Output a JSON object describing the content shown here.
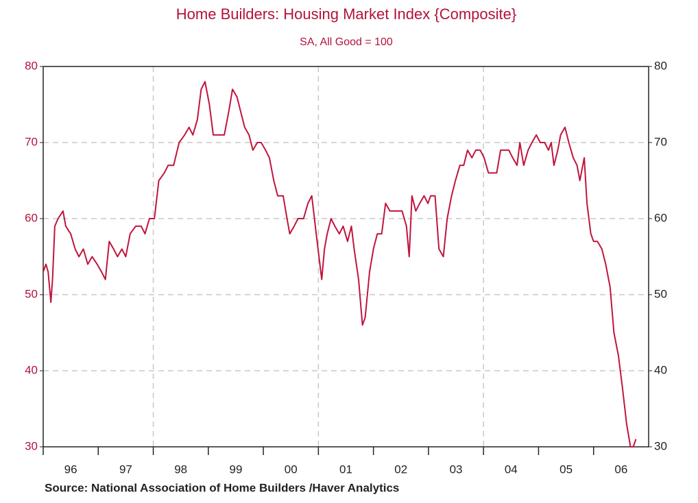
{
  "chart_data": {
    "type": "line",
    "title": "Home Builders: Housing Market Index  {Composite}",
    "subtitle": "SA, All Good = 100",
    "source": "Source:  National Association of Home Builders /Haver Analytics",
    "color": "#c0143c",
    "text_color": "#b3123a",
    "x": [
      1996.0,
      1996.05,
      1996.09,
      1996.14,
      1996.17,
      1996.21,
      1996.27,
      1996.36,
      1996.41,
      1996.5,
      1996.58,
      1996.65,
      1996.73,
      1996.81,
      1996.89,
      1996.98,
      1997.06,
      1997.13,
      1997.2,
      1997.28,
      1997.35,
      1997.43,
      1997.5,
      1997.58,
      1997.68,
      1997.78,
      1997.85,
      1997.93,
      1998.02,
      1998.1,
      1998.2,
      1998.27,
      1998.37,
      1998.47,
      1998.57,
      1998.65,
      1998.72,
      1998.8,
      1998.87,
      1998.94,
      1999.02,
      1999.09,
      1999.19,
      1999.29,
      1999.37,
      1999.44,
      1999.52,
      1999.59,
      1999.66,
      1999.74,
      1999.81,
      1999.89,
      1999.96,
      2000.04,
      2000.11,
      2000.19,
      2000.26,
      2000.36,
      2000.43,
      2000.48,
      2000.56,
      2000.63,
      2000.73,
      2000.81,
      2000.88,
      2000.96,
      2001.01,
      2001.06,
      2001.11,
      2001.16,
      2001.23,
      2001.3,
      2001.38,
      2001.45,
      2001.53,
      2001.6,
      2001.65,
      2001.73,
      2001.8,
      2001.85,
      2001.93,
      2002.0,
      2002.07,
      2002.15,
      2002.22,
      2002.3,
      2002.37,
      2002.45,
      2002.52,
      2002.6,
      2002.65,
      2002.7,
      2002.77,
      2002.84,
      2002.92,
      2002.99,
      2003.04,
      2003.12,
      2003.19,
      2003.27,
      2003.34,
      2003.42,
      2003.49,
      2003.57,
      2003.64,
      2003.71,
      2003.79,
      2003.86,
      2003.94,
      2004.01,
      2004.09,
      2004.16,
      2004.24,
      2004.31,
      2004.39,
      2004.46,
      2004.53,
      2004.61,
      2004.66,
      2004.73,
      2004.81,
      2004.88,
      2004.96,
      2005.03,
      2005.11,
      2005.18,
      2005.23,
      2005.28,
      2005.35,
      2005.4,
      2005.48,
      2005.55,
      2005.63,
      2005.7,
      2005.75,
      2005.83,
      2005.88,
      2005.95,
      2006.0,
      2006.07,
      2006.15,
      2006.22,
      2006.3,
      2006.37,
      2006.45,
      2006.52,
      2006.6,
      2006.67,
      2006.72,
      2006.77
    ],
    "values": [
      53,
      54,
      53,
      49,
      52,
      59,
      60,
      61,
      59,
      58,
      56,
      55,
      56,
      54,
      55,
      54,
      53,
      52,
      57,
      56,
      55,
      56,
      55,
      58,
      59,
      59,
      58,
      60,
      60,
      65,
      66,
      67,
      67,
      70,
      71,
      72,
      71,
      73,
      77,
      78,
      75,
      71,
      71,
      71,
      74,
      77,
      76,
      74,
      72,
      71,
      69,
      70,
      70,
      69,
      68,
      65,
      63,
      63,
      60,
      58,
      59,
      60,
      60,
      62,
      63,
      58,
      55,
      52,
      56,
      58,
      60,
      59,
      58,
      59,
      57,
      59,
      56,
      52,
      46,
      47,
      53,
      56,
      58,
      58,
      62,
      61,
      61,
      61,
      61,
      59,
      55,
      63,
      61,
      62,
      63,
      62,
      63,
      63,
      56,
      55,
      60,
      63,
      65,
      67,
      67,
      69,
      68,
      69,
      69,
      68,
      66,
      66,
      66,
      69,
      69,
      69,
      68,
      67,
      70,
      67,
      69,
      70,
      71,
      70,
      70,
      69,
      70,
      67,
      69,
      71,
      72,
      70,
      68,
      67,
      65,
      68,
      62,
      58,
      57,
      57,
      56,
      54,
      51,
      45,
      42,
      38,
      33,
      30,
      30,
      31
    ],
    "xlim": [
      1996,
      2007
    ],
    "xticks": [
      {
        "value": 1996,
        "label": "96"
      },
      {
        "value": 1997,
        "label": "97"
      },
      {
        "value": 1998,
        "label": "98"
      },
      {
        "value": 1999,
        "label": "99"
      },
      {
        "value": 2000,
        "label": "00"
      },
      {
        "value": 2001,
        "label": "01"
      },
      {
        "value": 2002,
        "label": "02"
      },
      {
        "value": 2003,
        "label": "03"
      },
      {
        "value": 2004,
        "label": "04"
      },
      {
        "value": 2005,
        "label": "05"
      },
      {
        "value": 2006,
        "label": "06"
      }
    ],
    "x_gridlines": [
      1998,
      2001,
      2004
    ],
    "ylim": [
      30,
      80
    ],
    "yticks": [
      30,
      40,
      50,
      60,
      70,
      80
    ],
    "grid": true,
    "right_axis_labels": true
  }
}
